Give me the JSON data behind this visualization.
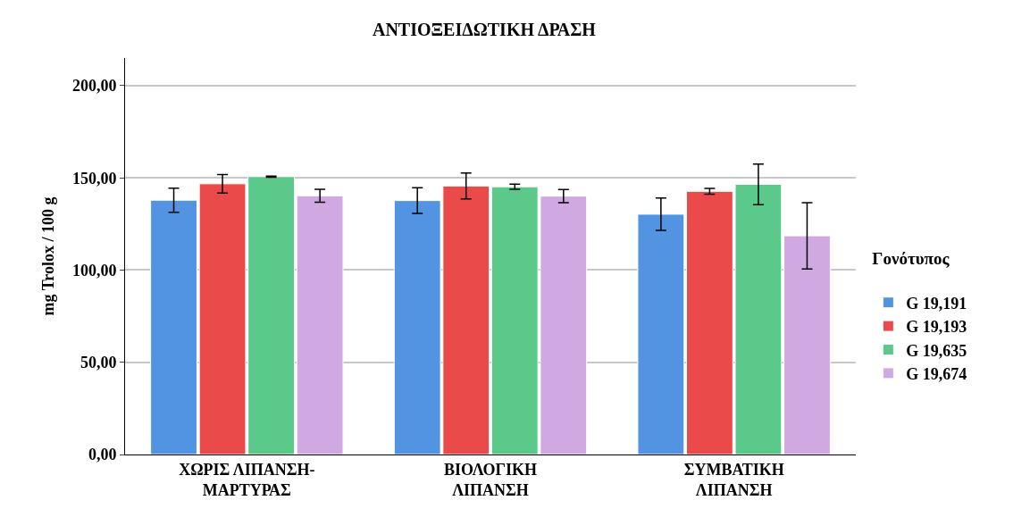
{
  "chart_data": {
    "type": "bar",
    "title": "ΑΝΤΙΟΞΕΙΔΩΤΙΚΗ ΔΡΑΣΗ",
    "ylabel": "mg Trolox / 100 g",
    "legend_title": "Γονότυπος",
    "categories": [
      "ΧΩΡΙΣ ΛΙΠΑΝΣΗ-\nΜΑΡΤΥΡΑΣ",
      "ΒΙΟΛΟΓΙΚΗ\nΛΙΠΑΝΣΗ",
      "ΣΥΜΒΑΤΙΚΗ\nΛΙΠΑΝΣΗ"
    ],
    "series": [
      {
        "name": "G 19,191",
        "color": "#5294e2",
        "values": [
          137.9,
          137.7,
          130.3
        ],
        "errors": [
          6.5,
          7,
          8.8
        ]
      },
      {
        "name": "G 19,193",
        "color": "#eb4a4b",
        "values": [
          146.8,
          145.6,
          142.7
        ],
        "errors": [
          5,
          7,
          1.6
        ]
      },
      {
        "name": "G 19,635",
        "color": "#5bc98a",
        "values": [
          150.7,
          145.2,
          146.5
        ],
        "errors": [
          0.3,
          1.4,
          11
        ]
      },
      {
        "name": "G 19,674",
        "color": "#d0a9e3",
        "values": [
          140.3,
          140.1,
          118.6
        ],
        "errors": [
          3.5,
          3.6,
          18
        ]
      }
    ],
    "ylim": [
      0,
      215
    ],
    "yticks": [
      {
        "value": 0,
        "label": "0,00"
      },
      {
        "value": 50,
        "label": "50,00"
      },
      {
        "value": 100,
        "label": "100,00"
      },
      {
        "value": 150,
        "label": "150,00"
      },
      {
        "value": 200,
        "label": "200,00"
      }
    ],
    "grid": "y",
    "legend": "right"
  }
}
